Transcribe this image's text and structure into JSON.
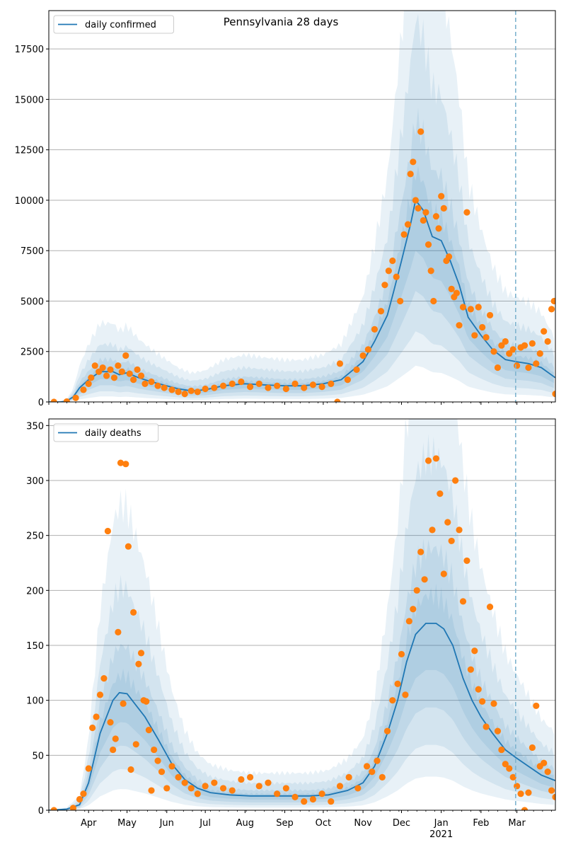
{
  "chart_data": [
    {
      "type": "line",
      "title": "Pennsylvania 28 days",
      "xlabel": "",
      "ylabel": "",
      "x_range": [
        "2020-03-01",
        "2021-03-31"
      ],
      "ylim": [
        0,
        19400
      ],
      "yticks": [
        0,
        2500,
        5000,
        7500,
        10000,
        12500,
        15000,
        17500
      ],
      "y_tick_labels": [
        "0",
        "2500",
        "5000",
        "7500",
        "10000",
        "12500",
        "15000",
        "17500"
      ],
      "grid": "horizontal",
      "legend": "top-left",
      "forecast_start": "2021-02-28",
      "series": [
        {
          "name": "daily confirmed",
          "kind": "line",
          "color": "#1f77b4",
          "dates": [
            "2020-03-01",
            "2020-03-10",
            "2020-03-15",
            "2020-03-20",
            "2020-03-25",
            "2020-04-01",
            "2020-04-10",
            "2020-04-20",
            "2020-04-25",
            "2020-05-01",
            "2020-05-10",
            "2020-05-20",
            "2020-06-01",
            "2020-06-10",
            "2020-06-20",
            "2020-07-01",
            "2020-07-15",
            "2020-08-01",
            "2020-08-15",
            "2020-09-01",
            "2020-09-15",
            "2020-10-01",
            "2020-10-15",
            "2020-11-01",
            "2020-11-10",
            "2020-11-20",
            "2020-11-25",
            "2020-12-01",
            "2020-12-08",
            "2020-12-12",
            "2020-12-18",
            "2020-12-25",
            "2021-01-01",
            "2021-01-08",
            "2021-01-15",
            "2021-01-22",
            "2021-02-01",
            "2021-02-10",
            "2021-02-20",
            "2021-02-28",
            "2021-03-10",
            "2021-03-20",
            "2021-03-31"
          ],
          "values": [
            0,
            0,
            50,
            250,
            700,
            1100,
            1500,
            1500,
            1350,
            1450,
            1200,
            1000,
            800,
            650,
            550,
            600,
            800,
            900,
            850,
            800,
            800,
            900,
            1100,
            2000,
            3000,
            4300,
            5500,
            7000,
            8800,
            10000,
            9500,
            8200,
            8000,
            7000,
            5800,
            4200,
            3300,
            2600,
            2100,
            2000,
            1900,
            1700,
            1200
          ]
        },
        {
          "name": "",
          "kind": "scatter",
          "color": "#ff7f0e",
          "dates": [
            "2020-03-05",
            "2020-03-15",
            "2020-03-22",
            "2020-03-28",
            "2020-04-01",
            "2020-04-03",
            "2020-04-06",
            "2020-04-09",
            "2020-04-12",
            "2020-04-15",
            "2020-04-18",
            "2020-04-21",
            "2020-04-24",
            "2020-04-27",
            "2020-04-30",
            "2020-05-03",
            "2020-05-06",
            "2020-05-09",
            "2020-05-12",
            "2020-05-15",
            "2020-05-20",
            "2020-05-25",
            "2020-05-30",
            "2020-06-05",
            "2020-06-10",
            "2020-06-15",
            "2020-06-20",
            "2020-06-25",
            "2020-07-01",
            "2020-07-08",
            "2020-07-15",
            "2020-07-22",
            "2020-07-29",
            "2020-08-05",
            "2020-08-12",
            "2020-08-19",
            "2020-08-26",
            "2020-09-02",
            "2020-09-09",
            "2020-09-16",
            "2020-09-23",
            "2020-09-30",
            "2020-10-07",
            "2020-10-12",
            "2020-10-14",
            "2020-10-20",
            "2020-10-27",
            "2020-11-01",
            "2020-11-05",
            "2020-11-10",
            "2020-11-15",
            "2020-11-18",
            "2020-11-21",
            "2020-11-24",
            "2020-11-27",
            "2020-11-30",
            "2020-12-03",
            "2020-12-06",
            "2020-12-08",
            "2020-12-10",
            "2020-12-12",
            "2020-12-14",
            "2020-12-16",
            "2020-12-18",
            "2020-12-20",
            "2020-12-22",
            "2020-12-24",
            "2020-12-26",
            "2020-12-28",
            "2020-12-30",
            "2021-01-01",
            "2021-01-03",
            "2021-01-05",
            "2021-01-07",
            "2021-01-09",
            "2021-01-11",
            "2021-01-13",
            "2021-01-15",
            "2021-01-18",
            "2021-01-21",
            "2021-01-24",
            "2021-01-27",
            "2021-01-30",
            "2021-02-02",
            "2021-02-05",
            "2021-02-08",
            "2021-02-11",
            "2021-02-14",
            "2021-02-17",
            "2021-02-20",
            "2021-02-23",
            "2021-02-26",
            "2021-03-01",
            "2021-03-04",
            "2021-03-07",
            "2021-03-10",
            "2021-03-13",
            "2021-03-16",
            "2021-03-19",
            "2021-03-22",
            "2021-03-25",
            "2021-03-28",
            "2021-03-30",
            "2021-03-31"
          ],
          "values": [
            0,
            20,
            200,
            600,
            900,
            1200,
            1800,
            1500,
            1700,
            1300,
            1600,
            1200,
            1800,
            1500,
            2300,
            1400,
            1100,
            1600,
            1300,
            900,
            1000,
            800,
            700,
            600,
            500,
            400,
            550,
            500,
            650,
            700,
            800,
            900,
            1000,
            750,
            900,
            700,
            800,
            650,
            900,
            700,
            850,
            750,
            900,
            0,
            1900,
            1100,
            1600,
            2300,
            2600,
            3600,
            4500,
            5800,
            6500,
            7000,
            6200,
            5000,
            8300,
            8800,
            11300,
            11900,
            10000,
            9600,
            13400,
            9000,
            9400,
            7800,
            6500,
            5000,
            9200,
            8600,
            10200,
            9600,
            7000,
            7200,
            5600,
            5200,
            5400,
            3800,
            4700,
            9400,
            4600,
            3300,
            4700,
            3700,
            3200,
            4300,
            2500,
            1700,
            2800,
            3000,
            2400,
            2600,
            1800,
            2700,
            2800,
            1700,
            2900,
            1900,
            2400,
            3500,
            3000,
            4600,
            5000,
            400
          ]
        }
      ],
      "bands": "nested prediction intervals around daily confirmed"
    },
    {
      "type": "line",
      "title": "",
      "xlabel": "",
      "ylabel": "",
      "x_range": [
        "2020-03-01",
        "2021-03-31"
      ],
      "ylim": [
        0,
        356
      ],
      "yticks": [
        0,
        50,
        100,
        150,
        200,
        250,
        300,
        350
      ],
      "y_tick_labels": [
        "0",
        "50",
        "100",
        "150",
        "200",
        "250",
        "300",
        "350"
      ],
      "x_tick_labels": [
        "Apr",
        "May",
        "Jun",
        "Jul",
        "Aug",
        "Sep",
        "Oct",
        "Nov",
        "Dec",
        "Jan",
        "Feb",
        "Mar"
      ],
      "x_year_label": "2021",
      "grid": "horizontal",
      "legend": "top-left",
      "forecast_start": "2021-02-28",
      "series": [
        {
          "name": "daily deaths",
          "kind": "line",
          "color": "#1f77b4",
          "dates": [
            "2020-03-01",
            "2020-03-15",
            "2020-03-25",
            "2020-04-01",
            "2020-04-10",
            "2020-04-20",
            "2020-04-25",
            "2020-05-01",
            "2020-05-05",
            "2020-05-15",
            "2020-05-25",
            "2020-06-05",
            "2020-06-15",
            "2020-06-25",
            "2020-07-05",
            "2020-07-20",
            "2020-08-05",
            "2020-08-20",
            "2020-09-05",
            "2020-09-20",
            "2020-10-05",
            "2020-10-20",
            "2020-11-01",
            "2020-11-10",
            "2020-11-20",
            "2020-11-28",
            "2020-12-05",
            "2020-12-12",
            "2020-12-20",
            "2020-12-28",
            "2021-01-03",
            "2021-01-10",
            "2021-01-18",
            "2021-01-25",
            "2021-02-01",
            "2021-02-10",
            "2021-02-20",
            "2021-02-28",
            "2021-03-10",
            "2021-03-20",
            "2021-03-31"
          ],
          "values": [
            0,
            1,
            5,
            25,
            70,
            100,
            107,
            106,
            100,
            85,
            65,
            42,
            28,
            20,
            16,
            14,
            13,
            13,
            13,
            13,
            14,
            18,
            25,
            40,
            70,
            100,
            135,
            160,
            170,
            170,
            165,
            150,
            120,
            100,
            85,
            70,
            55,
            48,
            40,
            32,
            27
          ]
        },
        {
          "name": "",
          "kind": "scatter",
          "color": "#ff7f0e",
          "dates": [
            "2020-03-05",
            "2020-03-20",
            "2020-03-25",
            "2020-03-28",
            "2020-04-01",
            "2020-04-04",
            "2020-04-07",
            "2020-04-10",
            "2020-04-13",
            "2020-04-16",
            "2020-04-18",
            "2020-04-20",
            "2020-04-22",
            "2020-04-24",
            "2020-04-26",
            "2020-04-28",
            "2020-04-30",
            "2020-05-02",
            "2020-05-04",
            "2020-05-06",
            "2020-05-08",
            "2020-05-10",
            "2020-05-12",
            "2020-05-14",
            "2020-05-16",
            "2020-05-18",
            "2020-05-20",
            "2020-05-22",
            "2020-05-25",
            "2020-05-28",
            "2020-06-01",
            "2020-06-05",
            "2020-06-10",
            "2020-06-15",
            "2020-06-20",
            "2020-06-25",
            "2020-07-01",
            "2020-07-08",
            "2020-07-15",
            "2020-07-22",
            "2020-07-29",
            "2020-08-05",
            "2020-08-12",
            "2020-08-19",
            "2020-08-26",
            "2020-09-02",
            "2020-09-09",
            "2020-09-16",
            "2020-09-23",
            "2020-09-30",
            "2020-10-07",
            "2020-10-14",
            "2020-10-21",
            "2020-10-28",
            "2020-11-04",
            "2020-11-08",
            "2020-11-12",
            "2020-11-16",
            "2020-11-20",
            "2020-11-24",
            "2020-11-28",
            "2020-12-01",
            "2020-12-04",
            "2020-12-07",
            "2020-12-10",
            "2020-12-13",
            "2020-12-16",
            "2020-12-19",
            "2020-12-22",
            "2020-12-25",
            "2020-12-28",
            "2020-12-31",
            "2021-01-03",
            "2021-01-06",
            "2021-01-09",
            "2021-01-12",
            "2021-01-15",
            "2021-01-18",
            "2021-01-21",
            "2021-01-24",
            "2021-01-27",
            "2021-01-30",
            "2021-02-02",
            "2021-02-05",
            "2021-02-08",
            "2021-02-11",
            "2021-02-14",
            "2021-02-17",
            "2021-02-20",
            "2021-02-23",
            "2021-02-26",
            "2021-03-01",
            "2021-03-04",
            "2021-03-07",
            "2021-03-10",
            "2021-03-13",
            "2021-03-16",
            "2021-03-19",
            "2021-03-22",
            "2021-03-25",
            "2021-03-28",
            "2021-03-31"
          ],
          "values": [
            0,
            2,
            10,
            15,
            38,
            75,
            85,
            105,
            120,
            254,
            80,
            55,
            65,
            162,
            316,
            97,
            315,
            240,
            37,
            180,
            60,
            133,
            143,
            100,
            99,
            73,
            18,
            55,
            45,
            35,
            20,
            40,
            30,
            25,
            20,
            15,
            22,
            25,
            20,
            18,
            28,
            30,
            22,
            25,
            15,
            20,
            12,
            8,
            10,
            15,
            8,
            22,
            30,
            20,
            40,
            35,
            45,
            30,
            72,
            100,
            115,
            142,
            105,
            172,
            183,
            200,
            235,
            210,
            318,
            255,
            320,
            288,
            215,
            262,
            245,
            300,
            255,
            190,
            227,
            128,
            145,
            110,
            99,
            76,
            185,
            97,
            72,
            55,
            42,
            38,
            30,
            22,
            15,
            0,
            16,
            57,
            95,
            40,
            43,
            35,
            18,
            12
          ]
        }
      ],
      "bands": "nested prediction intervals around daily deaths"
    }
  ]
}
